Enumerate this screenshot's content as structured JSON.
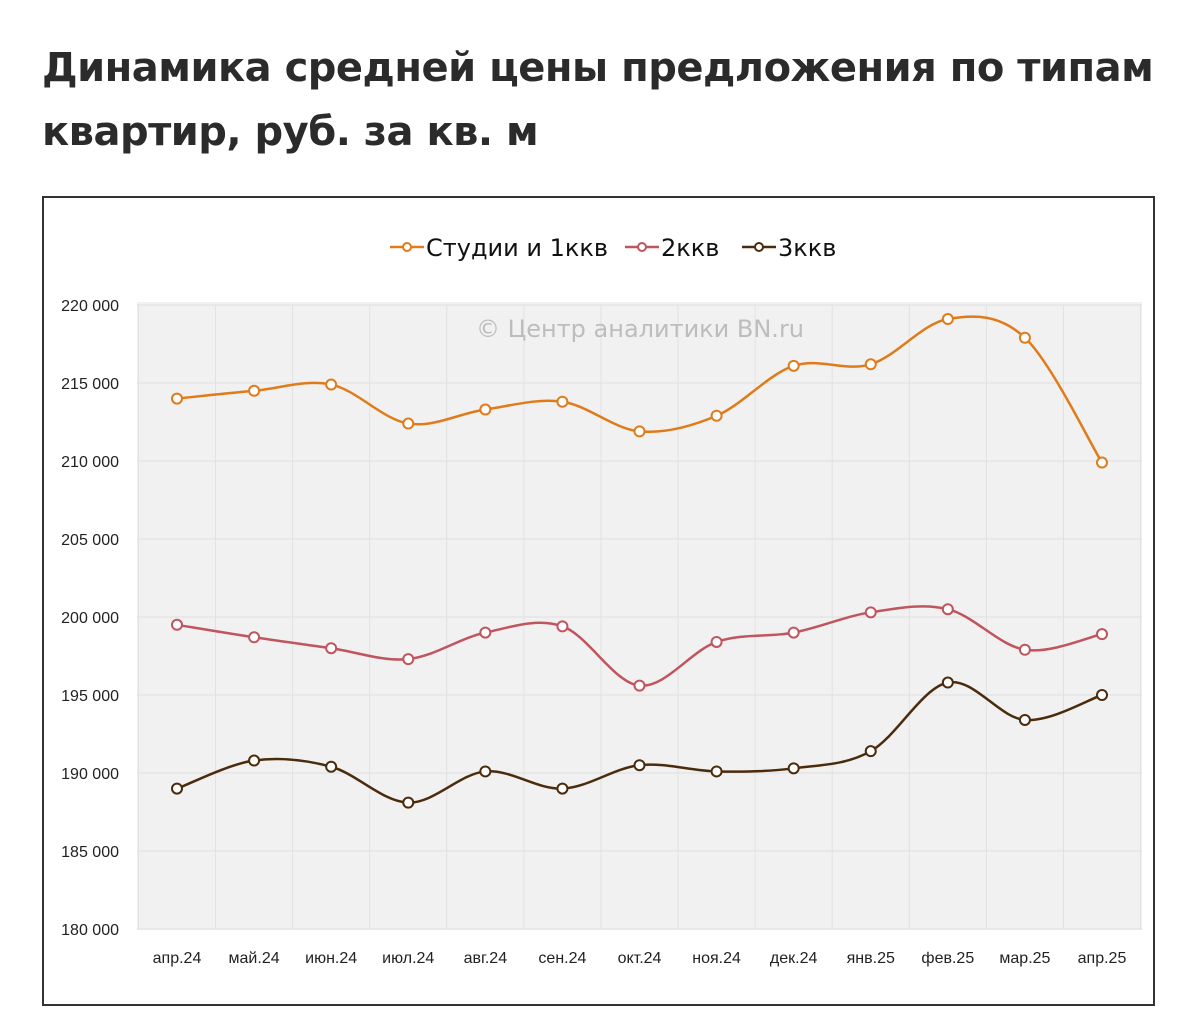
{
  "title": "Динамика средней цены предложения по типам квартир, руб. за кв. м",
  "chart_data": {
    "type": "line",
    "title": "Динамика средней цены предложения по типам квартир, руб. за кв. м",
    "watermark": "© Центр аналитики BN.ru",
    "categories": [
      "апр.24",
      "май.24",
      "июн.24",
      "июл.24",
      "авг.24",
      "сен.24",
      "окт.24",
      "ноя.24",
      "дек.24",
      "янв.25",
      "фев.25",
      "мар.25",
      "апр.25"
    ],
    "ylim": [
      180000,
      220000
    ],
    "yticks": [
      180000,
      185000,
      190000,
      195000,
      200000,
      205000,
      210000,
      215000,
      220000
    ],
    "ytick_labels": [
      "180 000",
      "185 000",
      "190 000",
      "195 000",
      "200 000",
      "205 000",
      "210 000",
      "215 000",
      "220 000"
    ],
    "grid": true,
    "legend_position": "top",
    "smooth": true,
    "series": [
      {
        "name": "Студии и 1ккв",
        "color": "#e07b1a",
        "values": [
          214000,
          214500,
          214900,
          212400,
          213300,
          213800,
          211900,
          212900,
          216100,
          216200,
          219100,
          217900,
          209900
        ]
      },
      {
        "name": "2ккв",
        "color": "#c0555f",
        "values": [
          199500,
          198700,
          198000,
          197300,
          199000,
          199400,
          195600,
          198400,
          199000,
          200300,
          200500,
          197900,
          198900
        ]
      },
      {
        "name": "3ккв",
        "color": "#4a2c0c",
        "values": [
          189000,
          190800,
          190400,
          188100,
          190100,
          189000,
          190500,
          190100,
          190300,
          191400,
          195800,
          193400,
          195000
        ]
      }
    ]
  }
}
